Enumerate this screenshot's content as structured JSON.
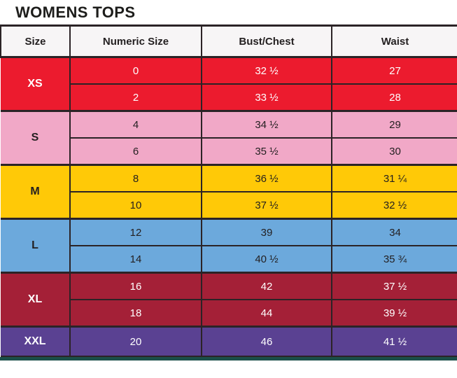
{
  "title": "WOMENS TOPS",
  "table": {
    "headers": [
      "Size",
      "Numeric Size",
      "Bust/Chest",
      "Waist"
    ],
    "grid_color": "#2B2326",
    "header_bg": "#F7F5F6",
    "next_section_color": "#1B4F49",
    "groups": [
      {
        "size": "XS",
        "bg": "#EC1B2E",
        "fg": "#FFFFFF",
        "rows": [
          [
            "0",
            "32 ½",
            "27"
          ],
          [
            "2",
            "33 ½",
            "28"
          ]
        ]
      },
      {
        "size": "S",
        "bg": "#F1A8C7",
        "fg": "#231F20",
        "rows": [
          [
            "4",
            "34 ½",
            "29"
          ],
          [
            "6",
            "35 ½",
            "30"
          ]
        ]
      },
      {
        "size": "M",
        "bg": "#FFC907",
        "fg": "#231F20",
        "rows": [
          [
            "8",
            "36 ½",
            "31 ¼"
          ],
          [
            "10",
            "37 ½",
            "32 ½"
          ]
        ]
      },
      {
        "size": "L",
        "bg": "#6CA9DC",
        "fg": "#231F20",
        "rows": [
          [
            "12",
            "39",
            "34"
          ],
          [
            "14",
            "40 ½",
            "35 ¾"
          ]
        ]
      },
      {
        "size": "XL",
        "bg": "#A42037",
        "fg": "#FFFFFF",
        "rows": [
          [
            "16",
            "42",
            "37 ½"
          ],
          [
            "18",
            "44",
            "39 ½"
          ]
        ]
      },
      {
        "size": "XXL",
        "bg": "#5A4192",
        "fg": "#FFFFFF",
        "rows": [
          [
            "20",
            "46",
            "41 ½"
          ]
        ]
      }
    ]
  },
  "chart_data": {
    "type": "table",
    "title": "WOMENS TOPS",
    "columns": [
      "Size",
      "Numeric Size",
      "Bust/Chest",
      "Waist"
    ],
    "rows": [
      [
        "XS",
        "0",
        "32 ½",
        "27"
      ],
      [
        "XS",
        "2",
        "33 ½",
        "28"
      ],
      [
        "S",
        "4",
        "34 ½",
        "29"
      ],
      [
        "S",
        "6",
        "35 ½",
        "30"
      ],
      [
        "M",
        "8",
        "36 ½",
        "31 ¼"
      ],
      [
        "M",
        "10",
        "37 ½",
        "32 ½"
      ],
      [
        "L",
        "12",
        "39",
        "34"
      ],
      [
        "L",
        "14",
        "40 ½",
        "35 ¾"
      ],
      [
        "XL",
        "16",
        "42",
        "37 ½"
      ],
      [
        "XL",
        "18",
        "44",
        "39 ½"
      ],
      [
        "XXL",
        "20",
        "46",
        "41 ½"
      ]
    ],
    "row_group_colors": {
      "XS": "#EC1B2E",
      "S": "#F1A8C7",
      "M": "#FFC907",
      "L": "#6CA9DC",
      "XL": "#A42037",
      "XXL": "#5A4192"
    },
    "layout_hints": {
      "grid": true,
      "size_column_rowspan": 2,
      "legend": false
    }
  }
}
